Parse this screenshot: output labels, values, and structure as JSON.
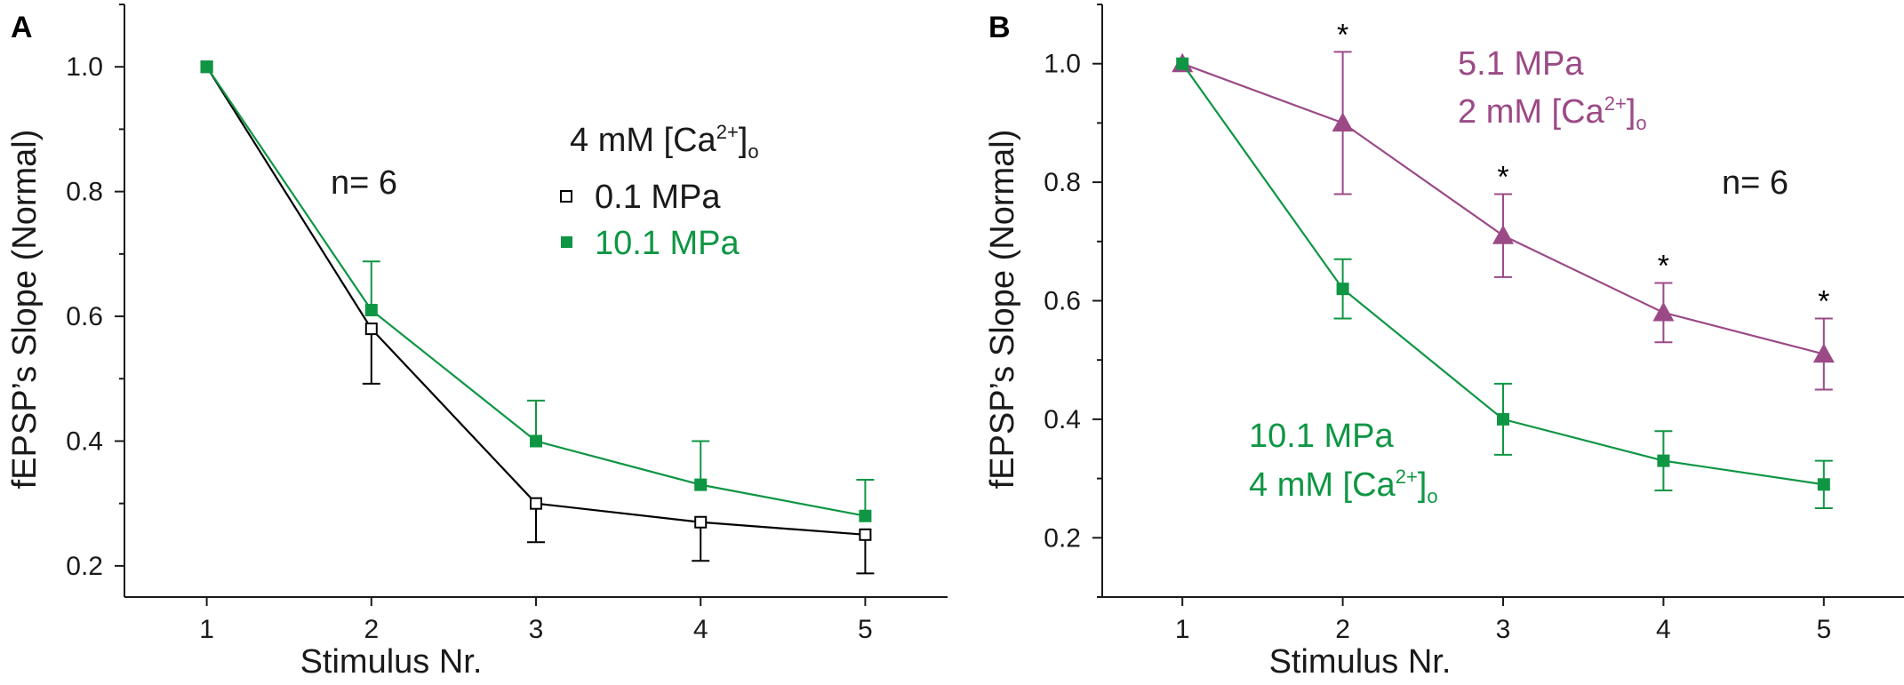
{
  "colors": {
    "axis": "#1a1a1a",
    "black": "#000000",
    "green": "#0f9644",
    "purple": "#9b4a86"
  },
  "chart_data": [
    {
      "panel": "A",
      "type": "line",
      "xlabel": "Stimulus Nr.",
      "ylabel": "fEPSP’s Slope (Normal)",
      "xlim": [
        0.5,
        5.5
      ],
      "ylim": [
        0.15,
        1.1
      ],
      "xticks": [
        1,
        2,
        3,
        4,
        5
      ],
      "yticks": [
        0.2,
        0.4,
        0.6,
        0.8,
        1.0
      ],
      "ytick_labels": [
        "0.2",
        "0.4",
        "0.6",
        "0.8",
        "1.0"
      ],
      "x": [
        1,
        2,
        3,
        4,
        5
      ],
      "series": [
        {
          "name": "0.1 MPa",
          "color": "black",
          "marker": "open-square",
          "values": [
            1.0,
            0.58,
            0.3,
            0.27,
            0.25
          ],
          "err": [
            0,
            0.088,
            0.062,
            0.062,
            0.062
          ],
          "err_dir": "down"
        },
        {
          "name": "10.1 MPa",
          "color": "green",
          "marker": "filled-square",
          "values": [
            1.0,
            0.61,
            0.4,
            0.33,
            0.28
          ],
          "err": [
            0,
            0.078,
            0.065,
            0.07,
            0.058
          ],
          "err_dir": "up"
        }
      ],
      "annotations": {
        "n": "n= 6",
        "legend_title": {
          "pre": "4 mM [Ca",
          "sup": "2+",
          "post": "]",
          "sub": "o"
        }
      }
    },
    {
      "panel": "B",
      "type": "line",
      "xlabel": "Stimulus Nr.",
      "ylabel": "fEPSP’s Slope (Normal)",
      "xlim": [
        0.5,
        5.5
      ],
      "ylim": [
        0.1,
        1.1
      ],
      "xticks": [
        1,
        2,
        3,
        4,
        5
      ],
      "yticks": [
        0.2,
        0.4,
        0.6,
        0.8,
        1.0
      ],
      "ytick_labels": [
        "0.2",
        "0.4",
        "0.6",
        "0.8",
        "1.0"
      ],
      "x": [
        1,
        2,
        3,
        4,
        5
      ],
      "series": [
        {
          "name": "5.1 MPa 2 mM [Ca2+]o",
          "color": "purple",
          "marker": "filled-triangle",
          "values": [
            1.0,
            0.9,
            0.71,
            0.58,
            0.51
          ],
          "err": [
            0,
            0.12,
            0.07,
            0.05,
            0.06
          ],
          "err_dir": "both"
        },
        {
          "name": "10.1 MPa 4 mM [Ca2+]o",
          "color": "green",
          "marker": "filled-square",
          "values": [
            1.0,
            0.62,
            0.4,
            0.33,
            0.29
          ],
          "err": [
            0,
            0.05,
            0.06,
            0.05,
            0.04
          ],
          "err_dir": "both"
        }
      ],
      "significance": [
        {
          "x": 2,
          "label": "*"
        },
        {
          "x": 3,
          "label": "*"
        },
        {
          "x": 4,
          "label": "*"
        },
        {
          "x": 5,
          "label": "*"
        }
      ],
      "annotations": {
        "n": "n= 6",
        "purple_label": {
          "line1": "5.1 MPa",
          "pre": "2 mM [Ca",
          "sup": "2+",
          "post": "]",
          "sub": "o"
        },
        "green_label": {
          "line1": "10.1 MPa",
          "pre": "4 mM [Ca",
          "sup": "2+",
          "post": "]",
          "sub": "o"
        }
      }
    }
  ]
}
